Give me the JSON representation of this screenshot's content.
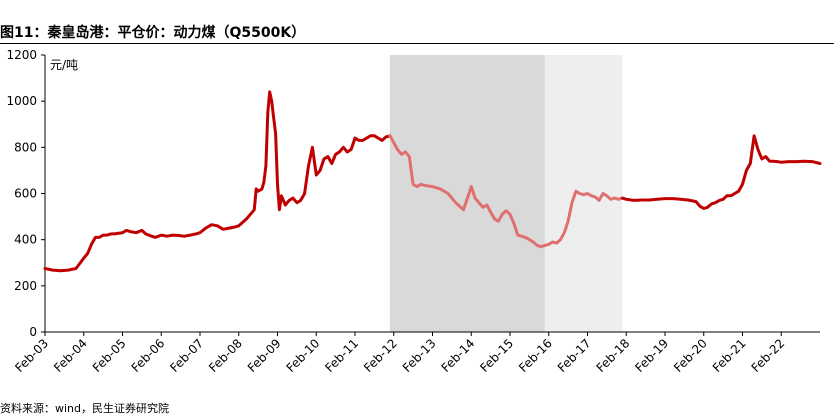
{
  "header": {
    "title": "图11：秦皇岛港：平仓价：动力煤（Q5500K）",
    "source": "资料来源：wind，民生证券研究院"
  },
  "chart_data": {
    "type": "line",
    "title": "图11：秦皇岛港：平仓价：动力煤（Q5500K）",
    "xlabel": "",
    "ylabel": "元/吨",
    "unit_label": "元/吨",
    "ylim": [
      0,
      1200
    ],
    "yticks": [
      "0",
      "200",
      "400",
      "600",
      "800",
      "1000",
      "1200"
    ],
    "xticks": [
      "Feb-03",
      "Feb-04",
      "Feb-05",
      "Feb-06",
      "Feb-07",
      "Feb-08",
      "Feb-09",
      "Feb-10",
      "Feb-11",
      "Feb-12",
      "Feb-13",
      "Feb-14",
      "Feb-15",
      "Feb-16",
      "Feb-17",
      "Feb-18",
      "Feb-19",
      "Feb-20",
      "Feb-21",
      "Feb-22"
    ],
    "xlim": [
      2003.0,
      2023.0
    ],
    "grid": false,
    "legend": "none",
    "shaded_periods": [
      {
        "start": 2011.9,
        "end": 2015.9,
        "color": "#d9d9d9"
      },
      {
        "start": 2015.9,
        "end": 2017.9,
        "color": "#eeeeee"
      }
    ],
    "colors": {
      "line_dark": "#c00000",
      "line_light": "#e07070"
    },
    "series": [
      {
        "color": "#c00000",
        "x": [
          2003.0,
          2003.2,
          2003.4,
          2003.6,
          2003.8,
          2004.0,
          2004.1,
          2004.2,
          2004.3,
          2004.4,
          2004.5,
          2004.6,
          2004.7,
          2004.8,
          2004.9,
          2005.0,
          2005.1,
          2005.2,
          2005.35,
          2005.5,
          2005.6,
          2005.75,
          2005.85,
          2006.0,
          2006.15,
          2006.3,
          2006.45,
          2006.6,
          2006.75,
          2006.9,
          2007.0,
          2007.15,
          2007.3,
          2007.45,
          2007.6,
          2007.75,
          2007.9,
          2008.0,
          2008.1,
          2008.2,
          2008.3,
          2008.4,
          2008.45,
          2008.5,
          2008.55,
          2008.6,
          2008.65,
          2008.7,
          2008.75,
          2008.8,
          2008.85,
          2008.9,
          2008.95,
          2009.0,
          2009.05,
          2009.1,
          2009.2,
          2009.3,
          2009.4,
          2009.5,
          2009.6,
          2009.7,
          2009.8,
          2009.9,
          2010.0,
          2010.1,
          2010.2,
          2010.3,
          2010.4,
          2010.5,
          2010.6,
          2010.7,
          2010.8,
          2010.9,
          2011.0,
          2011.1,
          2011.2,
          2011.3,
          2011.4,
          2011.5,
          2011.6,
          2011.7,
          2011.8,
          2011.9
        ],
        "values": [
          275,
          268,
          265,
          268,
          275,
          320,
          340,
          380,
          410,
          410,
          420,
          420,
          425,
          425,
          428,
          430,
          440,
          435,
          430,
          440,
          425,
          415,
          410,
          420,
          415,
          420,
          418,
          415,
          420,
          425,
          430,
          450,
          465,
          460,
          445,
          450,
          455,
          460,
          475,
          490,
          510,
          530,
          620,
          610,
          615,
          620,
          650,
          720,
          950,
          1040,
          1000,
          930,
          860,
          640,
          530,
          590,
          550,
          570,
          580,
          560,
          570,
          600,
          720,
          800,
          680,
          700,
          750,
          760,
          730,
          770,
          780,
          800,
          780,
          790,
          840,
          830,
          830,
          840,
          850,
          850,
          840,
          830,
          845,
          850
        ]
      },
      {
        "color": "#e07070",
        "x": [
          2011.9,
          2012.0,
          2012.1,
          2012.2,
          2012.3,
          2012.4,
          2012.5,
          2012.6,
          2012.7,
          2012.8,
          2013.0,
          2013.2,
          2013.4,
          2013.6,
          2013.8,
          2014.0,
          2014.1,
          2014.2,
          2014.3,
          2014.4,
          2014.5,
          2014.6,
          2014.7,
          2014.8,
          2014.9,
          2015.0,
          2015.1,
          2015.2,
          2015.3,
          2015.4,
          2015.5,
          2015.6,
          2015.7,
          2015.8,
          2015.9,
          2016.0,
          2016.1,
          2016.2,
          2016.3,
          2016.4,
          2016.5,
          2016.6,
          2016.7,
          2016.8,
          2016.9,
          2017.0,
          2017.1,
          2017.2,
          2017.3,
          2017.4,
          2017.5,
          2017.6,
          2017.7,
          2017.8,
          2017.9
        ],
        "values": [
          850,
          820,
          790,
          770,
          780,
          760,
          640,
          630,
          640,
          635,
          630,
          620,
          600,
          560,
          530,
          630,
          580,
          560,
          540,
          550,
          520,
          490,
          480,
          510,
          525,
          510,
          470,
          420,
          415,
          410,
          400,
          390,
          375,
          370,
          375,
          380,
          390,
          385,
          400,
          430,
          480,
          560,
          610,
          600,
          595,
          600,
          590,
          585,
          570,
          600,
          590,
          575,
          580,
          575,
          580
        ]
      },
      {
        "color": "#c00000",
        "x": [
          2017.9,
          2018.0,
          2018.2,
          2018.4,
          2018.6,
          2018.8,
          2019.0,
          2019.2,
          2019.4,
          2019.6,
          2019.8,
          2019.9,
          2020.0,
          2020.1,
          2020.2,
          2020.3,
          2020.4,
          2020.5,
          2020.6,
          2020.7,
          2020.8,
          2020.9,
          2021.0,
          2021.1,
          2021.2,
          2021.3,
          2021.4,
          2021.45,
          2021.5,
          2021.6,
          2021.7,
          2021.8,
          2021.9,
          2022.0,
          2022.2,
          2022.4,
          2022.6,
          2022.8,
          2023.0
        ],
        "values": [
          580,
          575,
          570,
          572,
          572,
          575,
          578,
          578,
          575,
          572,
          565,
          545,
          535,
          540,
          555,
          560,
          570,
          575,
          590,
          590,
          600,
          610,
          640,
          700,
          730,
          850,
          790,
          770,
          750,
          760,
          740,
          740,
          738,
          735,
          738,
          738,
          740,
          738,
          730
        ]
      }
    ]
  }
}
